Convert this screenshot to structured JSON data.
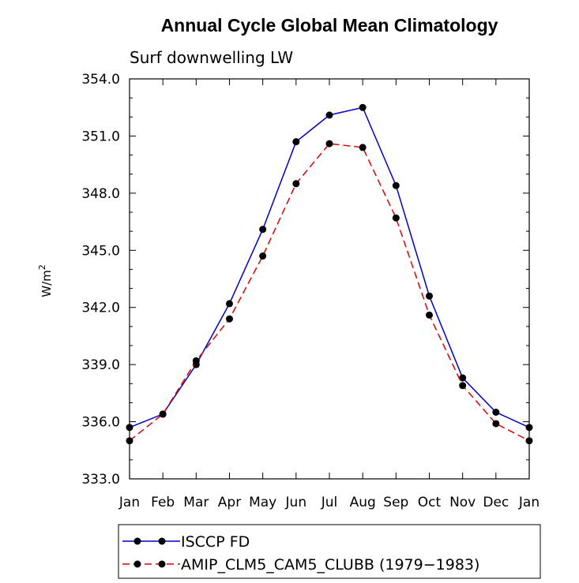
{
  "chart_data": {
    "type": "line",
    "title": "Annual Cycle Global Mean Climatology",
    "subtitle": "Surf downwelling LW",
    "ylabel": "W/m",
    "ylabel_sup": "2",
    "categories": [
      "Jan",
      "Feb",
      "Mar",
      "Apr",
      "May",
      "Jun",
      "Jul",
      "Aug",
      "Sep",
      "Oct",
      "Nov",
      "Dec",
      "Jan"
    ],
    "ylim": [
      333.0,
      354.0
    ],
    "yticks": [
      333.0,
      336.0,
      339.0,
      342.0,
      345.0,
      348.0,
      351.0,
      354.0
    ],
    "ytick_labels": [
      "333.0",
      "336.0",
      "339.0",
      "342.0",
      "345.0",
      "348.0",
      "351.0",
      "354.0"
    ],
    "grid": false,
    "legend_position": "bottom",
    "series": [
      {
        "name": "ISCCP FD",
        "color": "#0000cc",
        "dash": "solid",
        "values": [
          335.7,
          336.4,
          339.0,
          342.2,
          346.1,
          350.7,
          352.1,
          352.5,
          348.4,
          342.6,
          338.3,
          336.5,
          335.7
        ]
      },
      {
        "name": "AMIP_CLM5_CAM5_CLUBB (1979−1983)",
        "color": "#e00000",
        "dash": "dashed",
        "values": [
          335.0,
          336.4,
          339.2,
          341.4,
          344.7,
          348.5,
          350.6,
          350.4,
          346.7,
          341.6,
          337.9,
          335.9,
          335.0
        ]
      }
    ]
  }
}
